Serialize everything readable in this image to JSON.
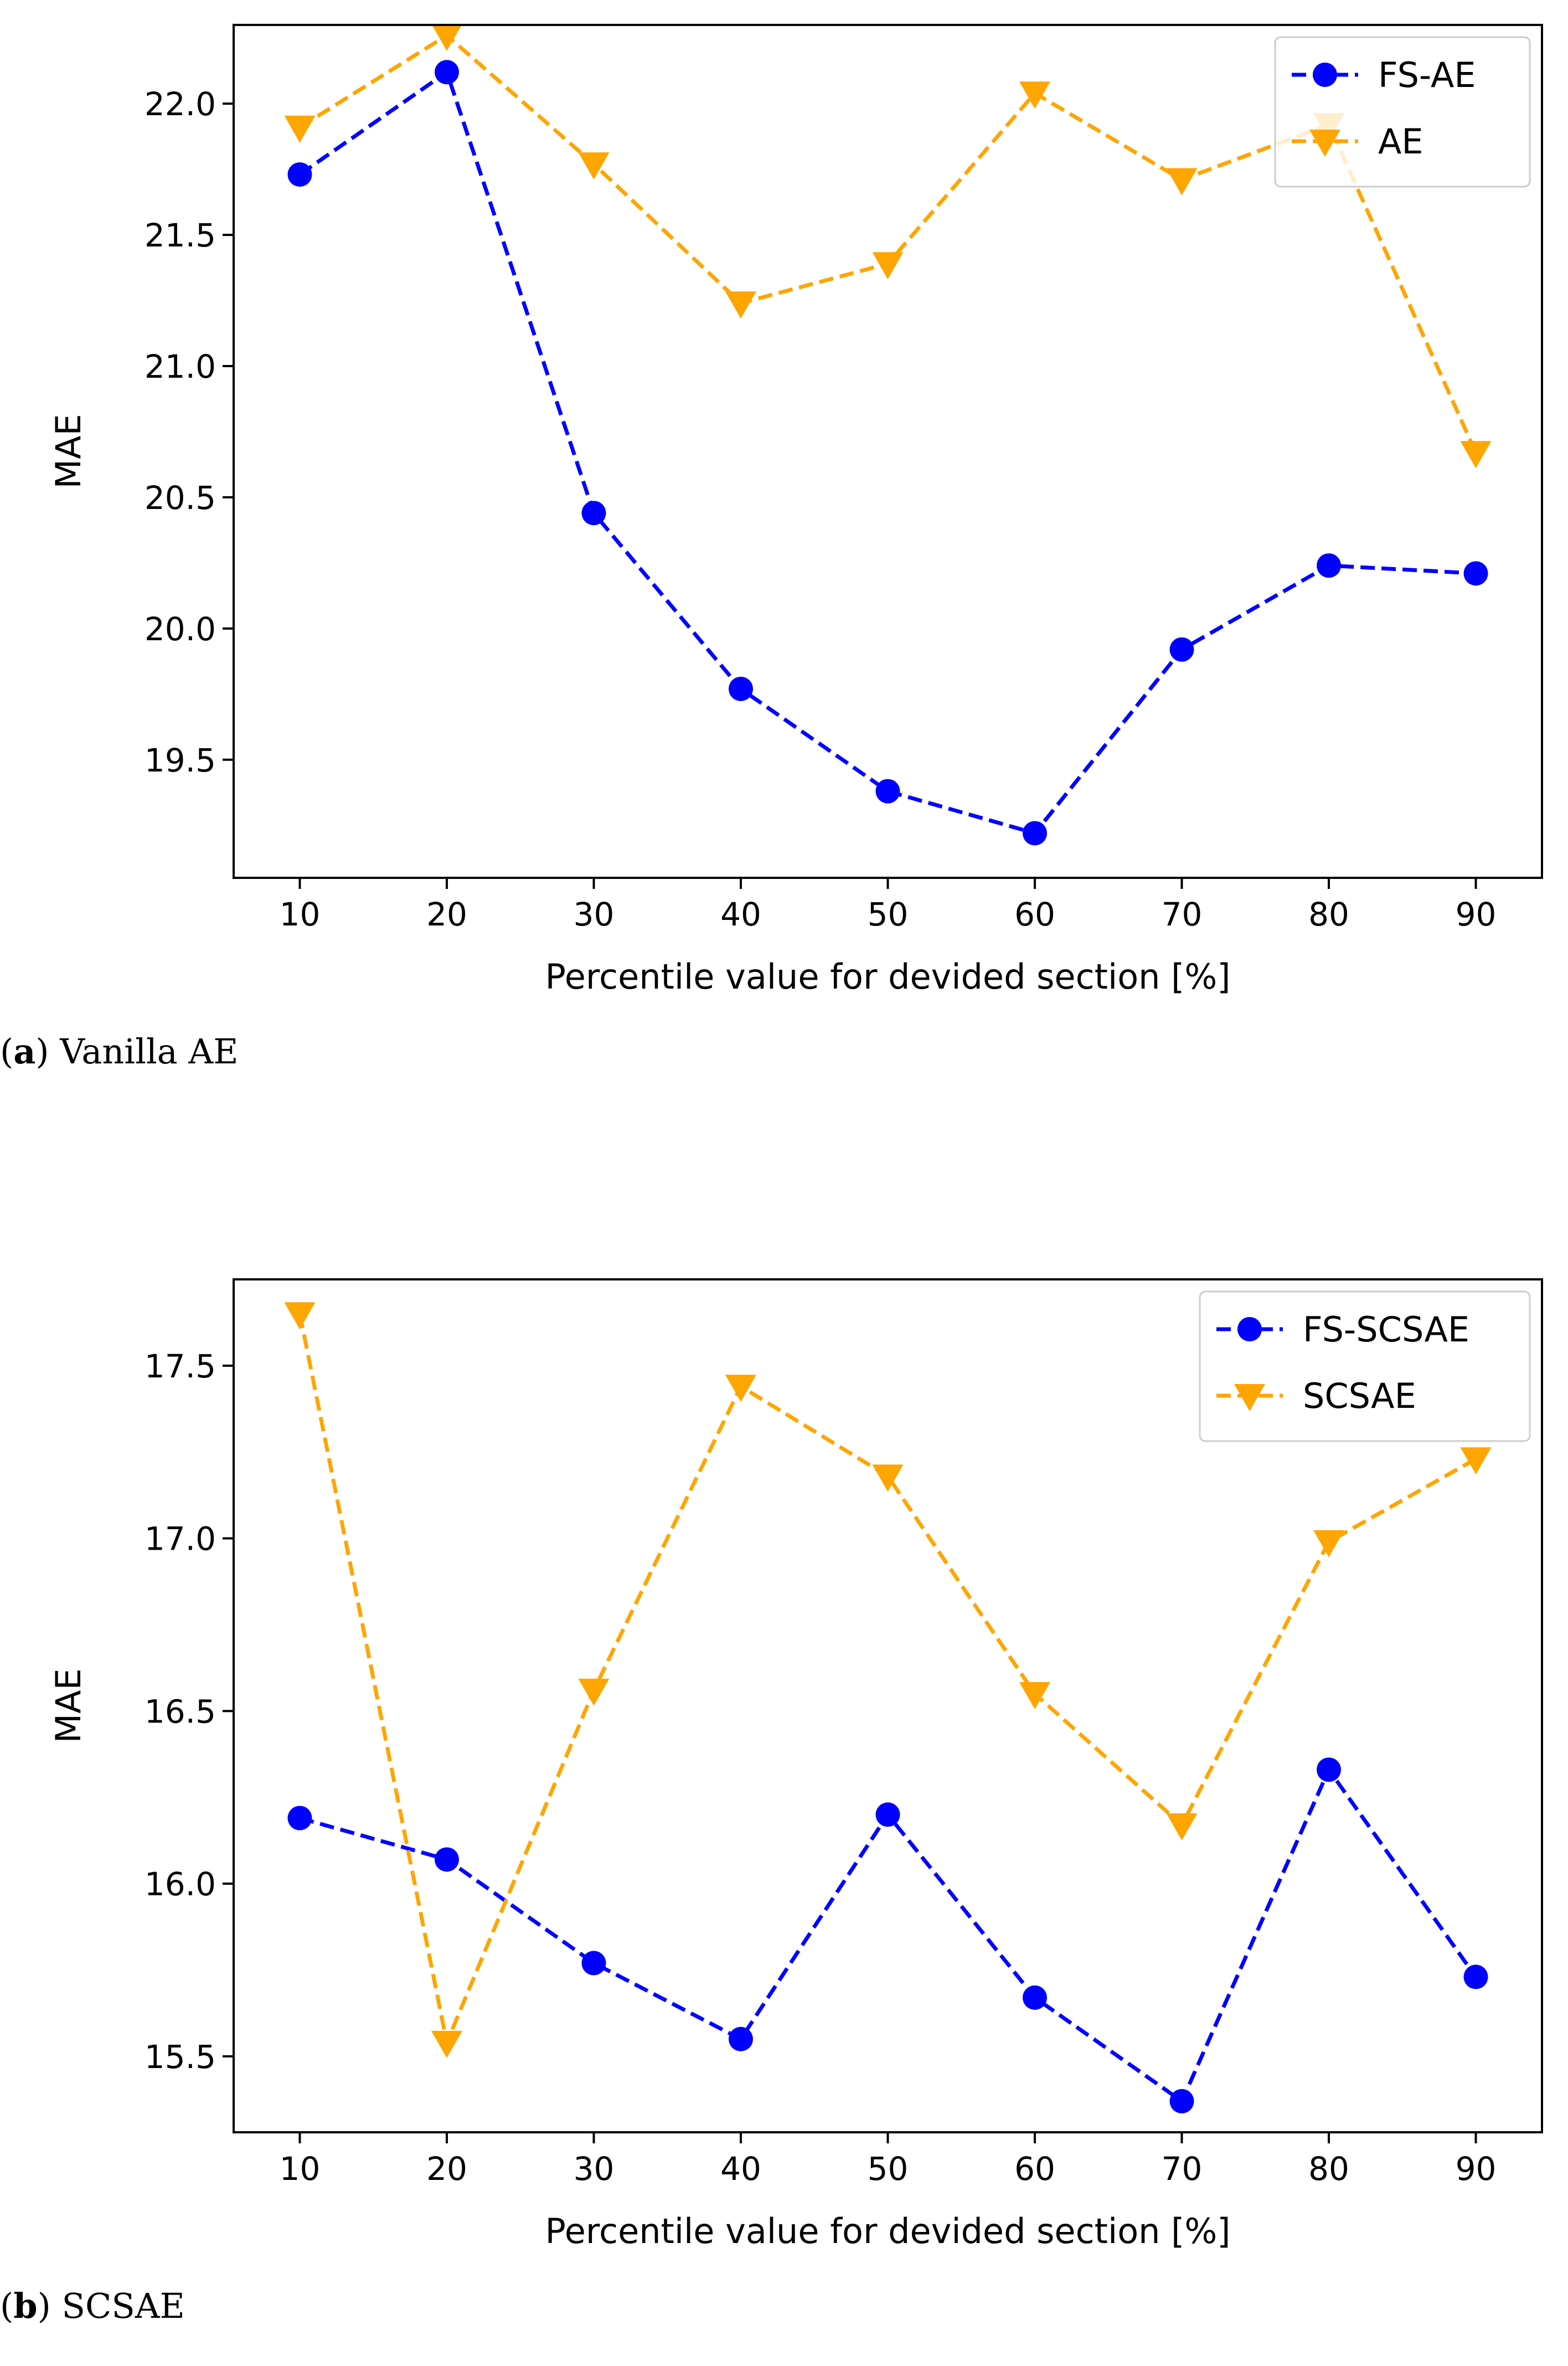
{
  "colors": {
    "fs": "#0000ff",
    "base": "#ffa500",
    "axis": "#000000",
    "legend_border": "#cccccc"
  },
  "chart_data": [
    {
      "type": "line",
      "xlabel": "Percentile value for devided section [%]",
      "ylabel": "MAE",
      "x": [
        10,
        20,
        30,
        40,
        50,
        60,
        70,
        80,
        90
      ],
      "xlim": [
        5.5,
        94.5
      ],
      "ylim": [
        19.05,
        22.3
      ],
      "xticks": [
        10,
        20,
        30,
        40,
        50,
        60,
        70,
        80,
        90
      ],
      "yticks": [
        19.5,
        20.0,
        20.5,
        21.0,
        21.5,
        22.0
      ],
      "legend_position": "top-right",
      "series": [
        {
          "name": "FS-AE",
          "marker": "circle",
          "color": "#0000ff",
          "linestyle": "dashed",
          "values": [
            21.73,
            22.12,
            20.44,
            19.77,
            19.38,
            19.22,
            19.92,
            20.24,
            20.21
          ]
        },
        {
          "name": "AE",
          "marker": "triangle-down",
          "color": "#ffa500",
          "linestyle": "dashed",
          "values": [
            21.91,
            22.26,
            21.77,
            21.24,
            21.39,
            22.04,
            21.71,
            21.92,
            20.67
          ]
        }
      ],
      "caption": {
        "letter": "a",
        "text": "Vanilla AE"
      }
    },
    {
      "type": "line",
      "xlabel": "Percentile value for devided section [%]",
      "ylabel": "MAE",
      "x": [
        10,
        20,
        30,
        40,
        50,
        60,
        70,
        80,
        90
      ],
      "xlim": [
        5.5,
        94.5
      ],
      "ylim": [
        15.28,
        17.75
      ],
      "xticks": [
        10,
        20,
        30,
        40,
        50,
        60,
        70,
        80,
        90
      ],
      "yticks": [
        15.5,
        16.0,
        16.5,
        17.0,
        17.5
      ],
      "legend_position": "top-right",
      "series": [
        {
          "name": "FS-SCSAE",
          "marker": "circle",
          "color": "#0000ff",
          "linestyle": "dashed",
          "values": [
            16.19,
            16.07,
            15.77,
            15.55,
            16.2,
            15.67,
            15.37,
            16.33,
            15.73
          ]
        },
        {
          "name": "SCSAE",
          "marker": "triangle-down",
          "color": "#ffa500",
          "linestyle": "dashed",
          "values": [
            17.65,
            15.54,
            16.56,
            17.44,
            17.18,
            16.55,
            16.17,
            16.99,
            17.23
          ]
        }
      ],
      "caption": {
        "letter": "b",
        "text": "SCSAE"
      }
    }
  ]
}
